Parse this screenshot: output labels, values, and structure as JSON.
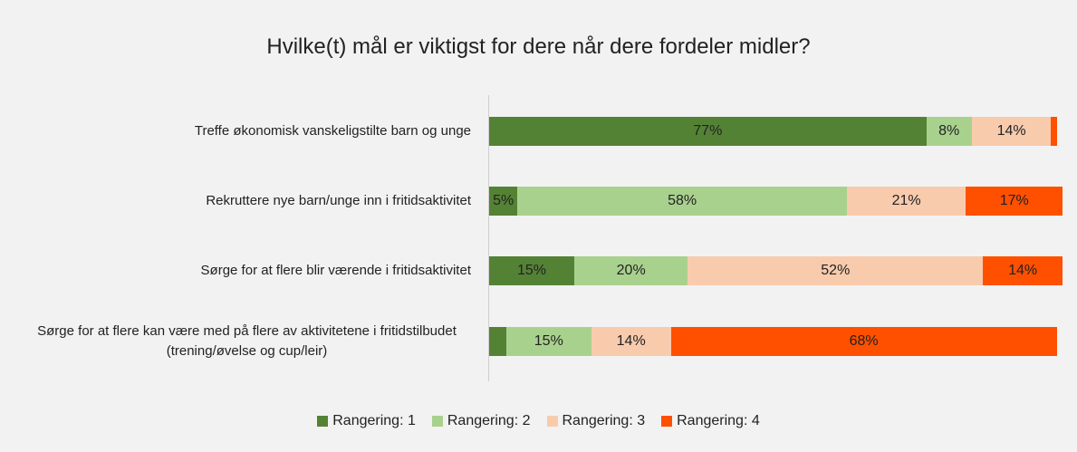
{
  "chart_data": {
    "type": "stacked-bar-horizontal",
    "title": "Hvilke(t) mål er viktigst for dere når dere fordeler midler?",
    "categories": [
      "Treffe økonomisk vanskeligstilte barn og unge",
      "Rekruttere nye barn/unge inn i fritidsaktivitet",
      "Sørge for at flere blir værende i fritidsaktivitet",
      "Sørge for at flere kan være med på flere av aktivitetene i fritidstilbudet (trening/øvelse og cup/leir)"
    ],
    "series": [
      {
        "name": "Rangering: 1",
        "color": "#548235",
        "values": [
          77,
          5,
          15,
          3
        ],
        "value_labels": [
          "77%",
          "5%",
          "15%",
          null
        ]
      },
      {
        "name": "Rangering: 2",
        "color": "#a9d18e",
        "values": [
          8,
          58,
          20,
          15
        ],
        "value_labels": [
          "8%",
          "58%",
          "20%",
          "15%"
        ]
      },
      {
        "name": "Rangering: 3",
        "color": "#f8cbad",
        "values": [
          14,
          21,
          52,
          14
        ],
        "value_labels": [
          "14%",
          "21%",
          "52%",
          "14%"
        ]
      },
      {
        "name": "Rangering: 4",
        "color": "#ff5000",
        "values": [
          1,
          17,
          14,
          68
        ],
        "value_labels": [
          null,
          "17%",
          "14%",
          "68%"
        ]
      }
    ],
    "xlim": [
      0,
      101
    ],
    "legend": "bottom"
  }
}
